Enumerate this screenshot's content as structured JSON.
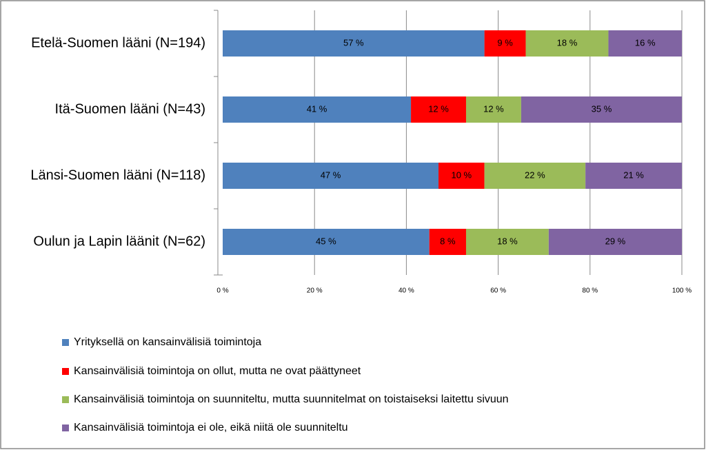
{
  "chart_data": {
    "type": "stacked-barh",
    "categories": [
      "Etelä-Suomen lääni (N=194)",
      "Itä-Suomen lääni (N=43)",
      "Länsi-Suomen lääni (N=118)",
      "Oulun ja Lapin läänit (N=62)"
    ],
    "series": [
      {
        "name": "Yrityksellä on kansainvälisiä toimintoja",
        "color": "#4f81bd",
        "values": [
          57,
          41,
          47,
          45
        ],
        "value_labels": [
          "57 %",
          "41 %",
          "47 %",
          "45 %"
        ]
      },
      {
        "name": "Kansainvälisiä toimintoja on ollut, mutta ne ovat päättyneet",
        "color": "#ff0000",
        "values": [
          9,
          12,
          10,
          8
        ],
        "value_labels": [
          "9 %",
          "12 %",
          "10 %",
          "8 %"
        ]
      },
      {
        "name": "Kansainvälisiä toimintoja on suunniteltu, mutta suunnitelmat on toistaiseksi laitettu sivuun",
        "color": "#9bbb59",
        "values": [
          18,
          12,
          22,
          18
        ],
        "value_labels": [
          "18 %",
          "12 %",
          "22 %",
          "18 %"
        ]
      },
      {
        "name": "Kansainvälisiä toimintoja ei ole, eikä niitä ole suunniteltu",
        "color": "#8064a2",
        "values": [
          16,
          35,
          21,
          29
        ],
        "value_labels": [
          "16 %",
          "35 %",
          "21 %",
          "29 %"
        ]
      }
    ],
    "xlim": [
      0,
      100
    ],
    "xticks": [
      {
        "value": 0,
        "label": "0 %"
      },
      {
        "value": 20,
        "label": "20 %"
      },
      {
        "value": 40,
        "label": "40 %"
      },
      {
        "value": 60,
        "label": "60 %"
      },
      {
        "value": 80,
        "label": "80 %"
      },
      {
        "value": 100,
        "label": "100 %"
      }
    ],
    "grid": true,
    "legend": "bottom"
  }
}
